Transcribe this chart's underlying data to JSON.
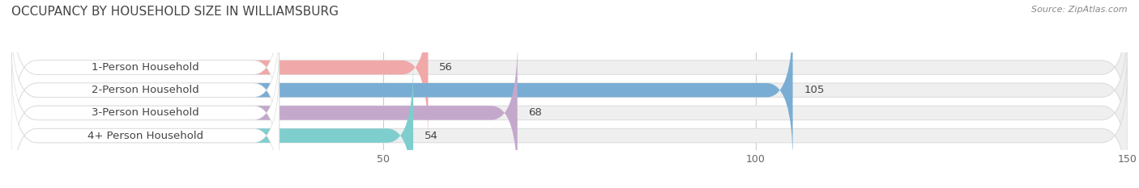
{
  "title": "OCCUPANCY BY HOUSEHOLD SIZE IN WILLIAMSBURG",
  "source": "Source: ZipAtlas.com",
  "categories": [
    "1-Person Household",
    "2-Person Household",
    "3-Person Household",
    "4+ Person Household"
  ],
  "values": [
    56,
    105,
    68,
    54
  ],
  "bar_colors": [
    "#f0a8a8",
    "#7aadd4",
    "#c4a8cc",
    "#7ecece"
  ],
  "xlim": [
    0,
    150
  ],
  "xticks": [
    50,
    100,
    150
  ],
  "title_fontsize": 11,
  "label_fontsize": 9.5,
  "value_fontsize": 9.5,
  "bar_height": 0.62,
  "background_color": "#ffffff",
  "track_color": "#efefef",
  "track_edge_color": "#dddddd",
  "label_box_color": "#ffffff",
  "grid_color": "#cccccc",
  "text_color": "#444444",
  "source_color": "#888888"
}
